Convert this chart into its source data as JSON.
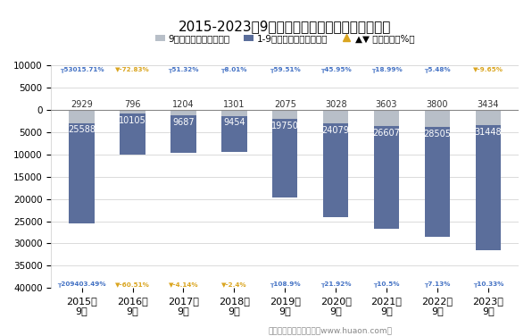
{
  "title": "2015-2023年9月郑州商品交易所甲醇期货成交量",
  "categories": [
    "2015年\n9月",
    "2016年\n9月",
    "2017年\n9月",
    "2018年\n9月",
    "2019年\n9月",
    "2020年\n9月",
    "2021年\n9月",
    "2022年\n9月",
    "2023年\n9月"
  ],
  "sep_values": [
    2929,
    796,
    1204,
    1301,
    2075,
    3028,
    3603,
    3800,
    3434
  ],
  "cumul_values": [
    25588,
    10105,
    9687,
    9454,
    19750,
    24079,
    26607,
    28505,
    31448
  ],
  "top_growth": [
    "┰53015.71%",
    "▼-72.83%",
    "┰51.32%",
    "┰8.01%",
    "┰59.51%",
    "┰45.95%",
    "┰18.99%",
    "┰5.48%",
    "▼-9.65%"
  ],
  "top_growth_colors": [
    "#4472c4",
    "#daa520",
    "#4472c4",
    "#4472c4",
    "#4472c4",
    "#4472c4",
    "#4472c4",
    "#4472c4",
    "#daa520"
  ],
  "bottom_growth": [
    "┰209403.49%",
    "▼-60.51%",
    "▼-4.14%",
    "▼-2.4%",
    "┰108.9%",
    "┰21.92%",
    "┰10.5%",
    "┰7.13%",
    "┰10.33%"
  ],
  "bottom_growth_colors": [
    "#4472c4",
    "#daa520",
    "#daa520",
    "#daa520",
    "#4472c4",
    "#4472c4",
    "#4472c4",
    "#4472c4",
    "#4472c4"
  ],
  "bar_color_sep": "#b8bfc8",
  "bar_color_cumul": "#5b6e9b",
  "footer": "制图：华经产业研究院（www.huaon.com）",
  "legend_sep": "9月期货成交量（万手）",
  "legend_cumul": "1-9月期货成交量（万手）",
  "legend_growth": "▲▼ 同比增长（%）"
}
